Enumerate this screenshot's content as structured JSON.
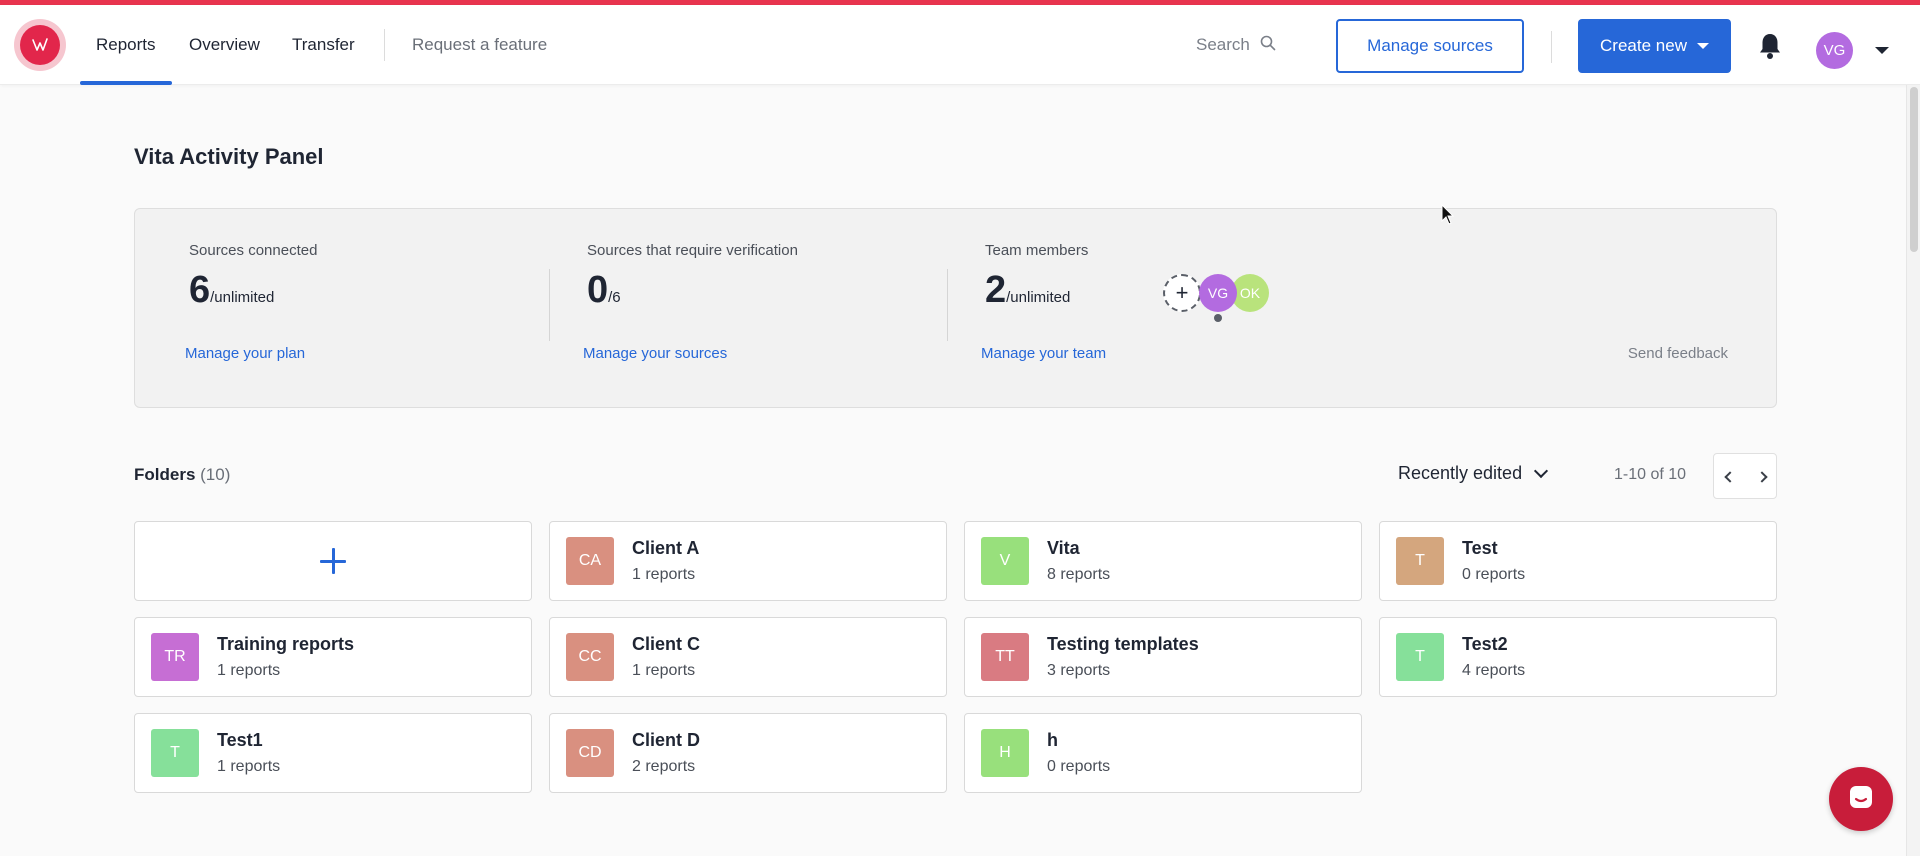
{
  "colors": {
    "brand": "#e2264b",
    "accent": "#2667d8",
    "chat": "#c81d3a"
  },
  "nav": {
    "logo_icon": "brand-logo-icon",
    "links": [
      "Reports",
      "Overview",
      "Transfer"
    ],
    "active": "Reports",
    "request_feature": "Request a feature",
    "search_label": "Search",
    "manage_sources": "Manage sources",
    "create_new": "Create new",
    "user_initials": "VG"
  },
  "page": {
    "title": "Vita Activity Panel"
  },
  "panel": {
    "stats": [
      {
        "label": "Sources connected",
        "value": "6",
        "suffix": "/unlimited",
        "link": "Manage your plan"
      },
      {
        "label": "Sources that require verification",
        "value": "0",
        "suffix": "/6",
        "link": "Manage your sources"
      },
      {
        "label": "Team members",
        "value": "2",
        "suffix": "/unlimited",
        "link": "Manage your team"
      }
    ],
    "team": {
      "add": "+",
      "members": [
        "VG",
        "OK"
      ]
    },
    "feedback": "Send feedback"
  },
  "folders": {
    "title": "Folders",
    "count": "(10)",
    "sort": "Recently edited",
    "range": "1-10 of 10",
    "items": [
      {
        "initials": "CA",
        "name": "Client A",
        "reports": "1 reports",
        "color": "#d99080"
      },
      {
        "initials": "V",
        "name": "Vita",
        "reports": "8 reports",
        "color": "#98e07c"
      },
      {
        "initials": "T",
        "name": "Test",
        "reports": "0 reports",
        "color": "#d4a67e"
      },
      {
        "initials": "TR",
        "name": "Training reports",
        "reports": "1 reports",
        "color": "#c66ed4"
      },
      {
        "initials": "CC",
        "name": "Client C",
        "reports": "1 reports",
        "color": "#d99080"
      },
      {
        "initials": "TT",
        "name": "Testing templates",
        "reports": "3 reports",
        "color": "#d97b82"
      },
      {
        "initials": "T",
        "name": "Test2",
        "reports": "4 reports",
        "color": "#86e09a"
      },
      {
        "initials": "T",
        "name": "Test1",
        "reports": "1 reports",
        "color": "#86e09a"
      },
      {
        "initials": "CD",
        "name": "Client D",
        "reports": "2 reports",
        "color": "#d99080"
      },
      {
        "initials": "H",
        "name": "h",
        "reports": "0 reports",
        "color": "#98e07c"
      }
    ]
  }
}
